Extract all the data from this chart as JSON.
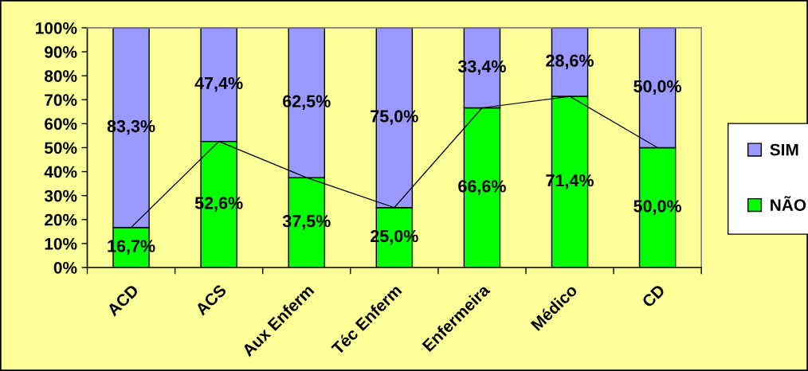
{
  "chart_data": {
    "type": "bar",
    "stacked": true,
    "categories": [
      "ACD",
      "ACS",
      "Aux Enferm",
      "Téc Enferm",
      "Enfermeira",
      "Médico",
      "CD"
    ],
    "series": [
      {
        "name": "NÃO",
        "color": "#00ff00",
        "values": [
          16.7,
          52.6,
          37.5,
          25.0,
          66.6,
          71.4,
          50.0
        ],
        "value_labels": [
          "16,7%",
          "52,6%",
          "37,5%",
          "25,0%",
          "66,6%",
          "71,4%",
          "50,0%"
        ]
      },
      {
        "name": "SIM",
        "color": "#9999ff",
        "values": [
          83.3,
          47.4,
          62.5,
          75.0,
          33.4,
          28.6,
          50.0
        ],
        "value_labels": [
          "83,3%",
          "47,4%",
          "62,5%",
          "75,0%",
          "33,4%",
          "28,6%",
          "50,0%"
        ]
      },
      {
        "type": "line",
        "color": "#000000",
        "values": [
          16.7,
          52.6,
          37.5,
          25.0,
          66.6,
          71.4,
          50.0
        ]
      }
    ],
    "ylim": [
      0,
      100
    ],
    "yticks": [
      {
        "value": 0,
        "label": "0%"
      },
      {
        "value": 10,
        "label": "10%"
      },
      {
        "value": 20,
        "label": "20%"
      },
      {
        "value": 30,
        "label": "30%"
      },
      {
        "value": 40,
        "label": "40%"
      },
      {
        "value": 50,
        "label": "50%"
      },
      {
        "value": 60,
        "label": "60%"
      },
      {
        "value": 70,
        "label": "70%"
      },
      {
        "value": 80,
        "label": "80%"
      },
      {
        "value": 90,
        "label": "90%"
      },
      {
        "value": 100,
        "label": "100%"
      }
    ],
    "legend": "right"
  }
}
